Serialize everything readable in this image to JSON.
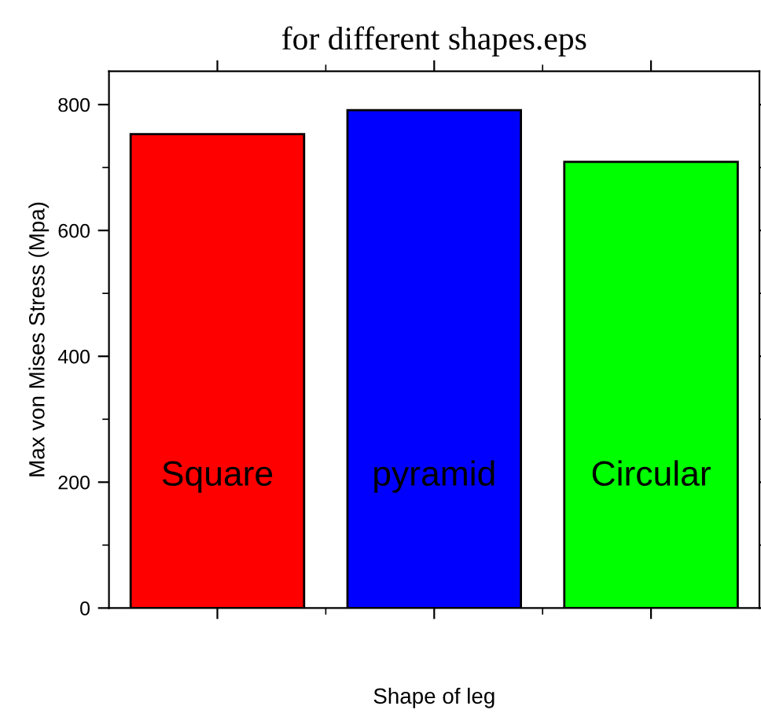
{
  "chart_data": {
    "type": "bar",
    "title": "for different shapes.eps",
    "xlabel": "Shape of leg",
    "ylabel": "Max von Mises Stress (Mpa)",
    "categories": [
      "Square",
      "pyramid",
      "Circular"
    ],
    "values": [
      753,
      791,
      709
    ],
    "colors": [
      "#ff0000",
      "#0000ff",
      "#00ff00"
    ],
    "ylim": [
      0,
      853
    ],
    "yticks": [
      0,
      200,
      400,
      600,
      800
    ],
    "grid": false,
    "legend": false
  }
}
